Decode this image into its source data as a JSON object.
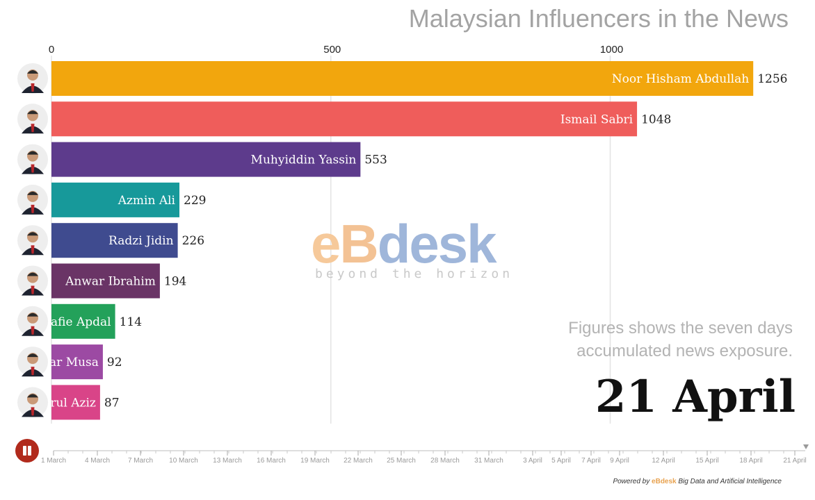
{
  "title": "Malaysian Influencers in the News",
  "note_line1": "Figures shows the seven days",
  "note_line2": "accumulated news exposure.",
  "date_label": "21 April",
  "watermark": {
    "brand": "eBdesk",
    "tagline": "beyond the horizon"
  },
  "footer": {
    "powered_by": "Powered by",
    "brand": "eBdesk",
    "tagline": "Big Data and Artificial Intelligence"
  },
  "controls": {
    "play_icon": "pause-icon"
  },
  "chart_data": {
    "type": "bar",
    "orientation": "horizontal",
    "title": "Malaysian Influencers in the News",
    "xlim": [
      0,
      1300
    ],
    "xticks": [
      0,
      500,
      1000
    ],
    "grid": true,
    "labels": [
      "Noor Hisham Abdullah",
      "Ismail Sabri",
      "Muhyiddin Yassin",
      "Azmin Ali",
      "Radzi Jidin",
      "Anwar Ibrahim",
      "Shafie Apdal",
      "Annuar Musa",
      "Tengku Zafrul Aziz"
    ],
    "values": [
      1256,
      1048,
      553,
      229,
      226,
      194,
      114,
      92,
      87
    ],
    "colors": [
      "#f2a60d",
      "#ef5d5b",
      "#5d3b8c",
      "#17999a",
      "#3f4b8f",
      "#6a3466",
      "#23a15a",
      "#9c4aa3",
      "#d94488"
    ],
    "timeline": {
      "ticks": [
        "1 March",
        "4 March",
        "7 March",
        "10 March",
        "13 March",
        "16 March",
        "19 March",
        "22 March",
        "25 March",
        "28 March",
        "31 March",
        "3 April",
        "5 April",
        "7 April",
        "9 April",
        "12 April",
        "15 April",
        "18 April",
        "21 April"
      ],
      "current": "21 April"
    }
  }
}
